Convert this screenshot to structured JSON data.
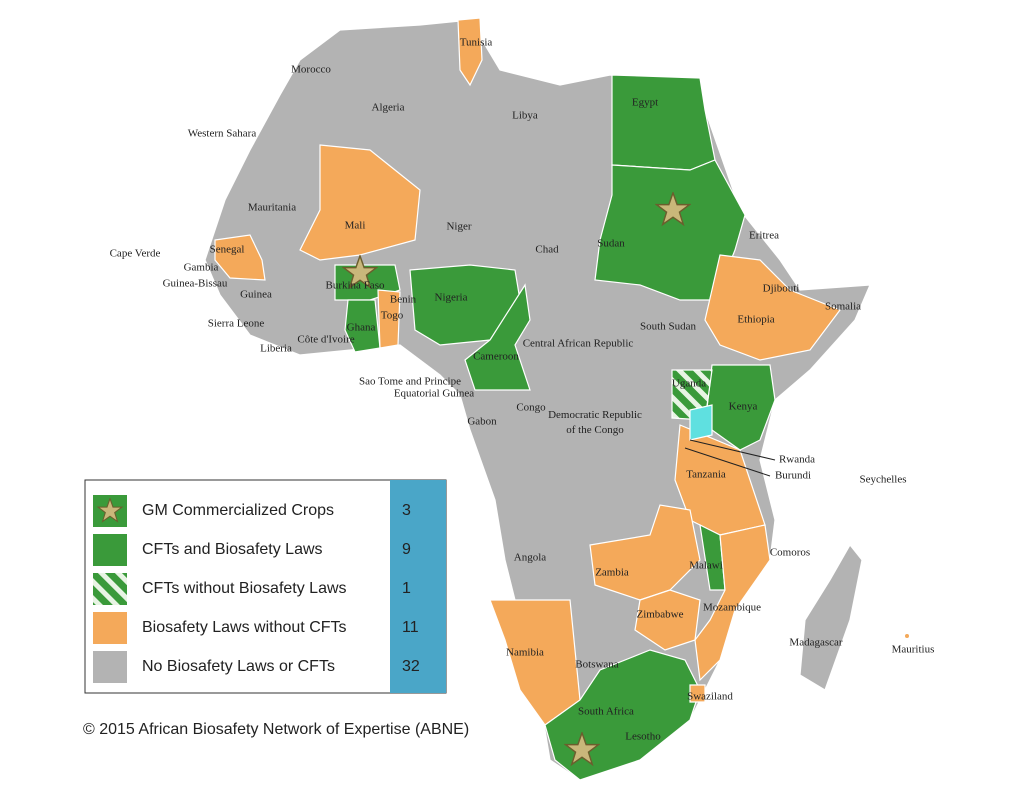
{
  "countries": [
    "Tunisia",
    "Morocco",
    "Algeria",
    "Libya",
    "Egypt",
    "Western Sahara",
    "Mauritania",
    "Mali",
    "Niger",
    "Chad",
    "Sudan",
    "Eritrea",
    "Cape Verde",
    "Senegal",
    "Gambia",
    "Guinea-Bissau",
    "Guinea",
    "Burkina Faso",
    "Benin",
    "Togo",
    "Nigeria",
    "Djibouti",
    "Somalia",
    "Ethiopia",
    "South Sudan",
    "Sierra Leone",
    "Ghana",
    "Côte d'Ivoire",
    "Liberia",
    "Cameroon",
    "Central African Republic",
    "Sao Tome and Principe",
    "Equatorial Guinea",
    "Uganda",
    "Kenya",
    "Congo",
    "Gabon",
    [
      "Democratic Republic",
      "of the Congo"
    ],
    "Rwanda",
    "Burundi",
    "Tanzania",
    "Seychelles",
    "Angola",
    "Zambia",
    "Malawi",
    "Comoros",
    "Zimbabwe",
    "Mozambique",
    "Madagascar",
    "Mauritius",
    "Namibia",
    "Botswana",
    "Swaziland",
    "South Africa",
    "Lesotho"
  ],
  "legend": {
    "items": [
      {
        "label": "GM Commercialized Crops",
        "count": "3"
      },
      {
        "label": "CFTs and Biosafety Laws",
        "count": "9"
      },
      {
        "label": "CFTs without Biosafety Laws",
        "count": "1"
      },
      {
        "label": "Biosafety Laws without CFTs",
        "count": "11"
      },
      {
        "label": "No Biosafety Laws or CFTs",
        "count": "32"
      }
    ]
  },
  "copyright": "© 2015 African Biosafety Network of Expertise (ABNE)"
}
